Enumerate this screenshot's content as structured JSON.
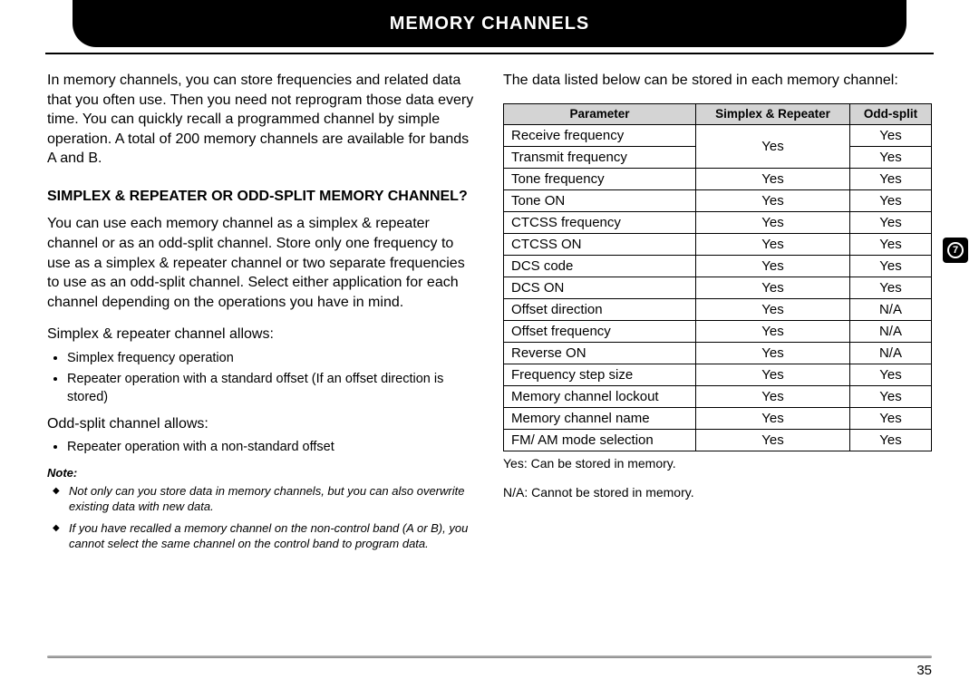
{
  "header": {
    "title": "MEMORY CHANNELS"
  },
  "sideBadge": {
    "number": "7"
  },
  "pageNumber": "35",
  "left": {
    "intro": "In memory channels, you can store frequencies and related data that you often use.  Then you need not reprogram those data every time.  You can quickly recall a programmed channel by simple operation.  A total of 200 memory channels are available for bands A and B.",
    "heading": "SIMPLEX & REPEATER OR ODD-SPLIT MEMORY CHANNEL?",
    "para1": "You can use each memory channel as a simplex & repeater channel or as an odd-split channel.  Store only one frequency to use as a simplex & repeater channel or two separate frequencies to use as an odd-split channel.  Select either application for each channel depending on the operations you have in mind.",
    "srLabel": "Simplex & repeater channel allows:",
    "srBullets": [
      "Simplex frequency operation",
      "Repeater operation with a standard offset (If an offset direction is stored)"
    ],
    "osLabel": "Odd-split channel allows:",
    "osBullets": [
      "Repeater operation with a non-standard offset"
    ],
    "noteLabel": "Note:",
    "notes": [
      "Not only can you store data in memory channels, but you can also overwrite existing data with new data.",
      "If you have recalled a memory channel on the non-control band (A or B), you cannot select the same channel on the control band to program data."
    ]
  },
  "right": {
    "lead": "The data listed below can be stored in each memory channel:",
    "table": {
      "headers": {
        "param": "Parameter",
        "sr": "Simplex & Repeater",
        "os": "Odd-split"
      },
      "rows": [
        {
          "p": "Receive frequency",
          "sr": "Yes",
          "os": "Yes",
          "srSpan": true
        },
        {
          "p": "Transmit frequency",
          "sr": "",
          "os": "Yes"
        },
        {
          "p": "Tone frequency",
          "sr": "Yes",
          "os": "Yes"
        },
        {
          "p": "Tone ON",
          "sr": "Yes",
          "os": "Yes"
        },
        {
          "p": "CTCSS frequency",
          "sr": "Yes",
          "os": "Yes"
        },
        {
          "p": "CTCSS ON",
          "sr": "Yes",
          "os": "Yes"
        },
        {
          "p": "DCS code",
          "sr": "Yes",
          "os": "Yes"
        },
        {
          "p": "DCS ON",
          "sr": "Yes",
          "os": "Yes"
        },
        {
          "p": "Offset direction",
          "sr": "Yes",
          "os": "N/A"
        },
        {
          "p": "Offset frequency",
          "sr": "Yes",
          "os": "N/A"
        },
        {
          "p": "Reverse ON",
          "sr": "Yes",
          "os": "N/A"
        },
        {
          "p": "Frequency step size",
          "sr": "Yes",
          "os": "Yes"
        },
        {
          "p": "Memory channel lockout",
          "sr": "Yes",
          "os": "Yes"
        },
        {
          "p": "Memory channel name",
          "sr": "Yes",
          "os": "Yes"
        },
        {
          "p": "FM/ AM mode selection",
          "sr": "Yes",
          "os": "Yes"
        }
      ]
    },
    "legendYes": "Yes: Can be stored in memory.",
    "legendNA": "N/A: Cannot be stored in memory."
  }
}
